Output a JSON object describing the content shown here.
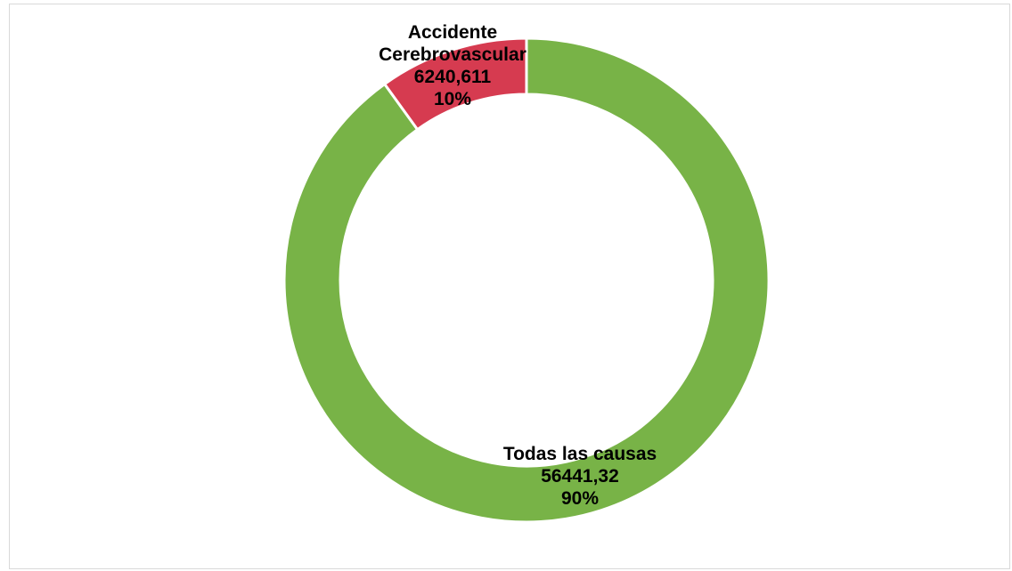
{
  "chart_data": {
    "type": "pie",
    "variant": "doughnut",
    "title": "",
    "series": [
      {
        "slices": [
          {
            "label": "Todas las causas",
            "value": 56441.32,
            "value_text": "56441,32",
            "percent": 90,
            "percent_text": "90%",
            "color": "#78b347"
          },
          {
            "label": "Accidente Cerebrovascular",
            "label_lines": [
              "Accidente",
              "Cerebrovascular"
            ],
            "value": 6240.611,
            "value_text": "6240,611",
            "percent": 10,
            "percent_text": "10%",
            "color": "#d63b50"
          }
        ]
      }
    ],
    "legend": "none",
    "slice_border_color": "#ffffff",
    "background": "#ffffff",
    "frame_color": "#d9d9d9"
  }
}
